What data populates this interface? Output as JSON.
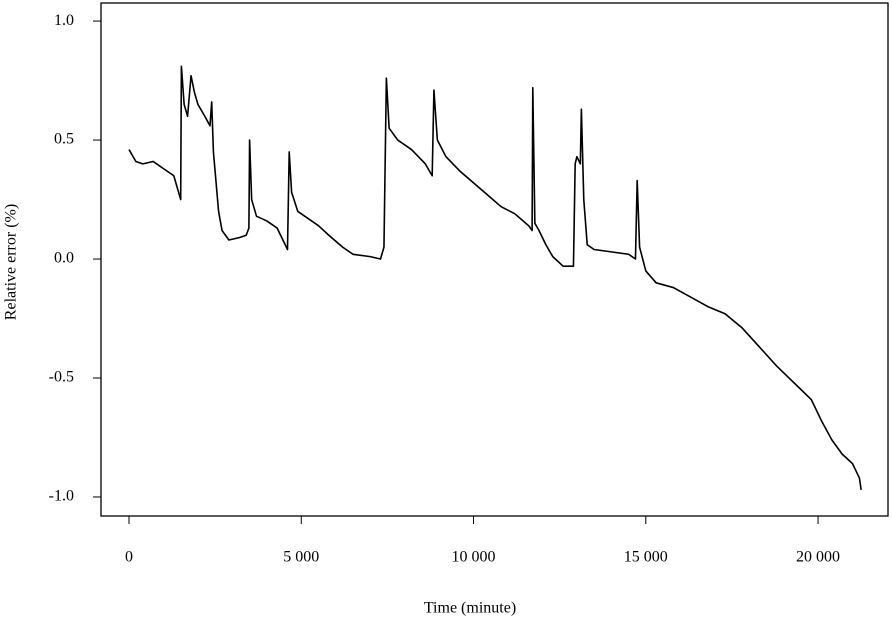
{
  "chart_data": {
    "type": "line",
    "xlabel": "Time (minute)",
    "ylabel": "Relative error (%)",
    "x": [
      0,
      200,
      400,
      700,
      1000,
      1300,
      1500,
      1520,
      1600,
      1700,
      1800,
      1900,
      2000,
      2200,
      2350,
      2400,
      2450,
      2600,
      2700,
      2900,
      3200,
      3400,
      3480,
      3500,
      3560,
      3700,
      4000,
      4300,
      4500,
      4600,
      4650,
      4720,
      4900,
      5200,
      5500,
      5800,
      6200,
      6500,
      7000,
      7300,
      7400,
      7470,
      7550,
      7800,
      8200,
      8600,
      8800,
      8850,
      8950,
      9200,
      9600,
      10000,
      10400,
      10800,
      11200,
      11600,
      11700,
      11720,
      11780,
      11900,
      12100,
      12300,
      12600,
      12900,
      12950,
      13000,
      13100,
      13130,
      13200,
      13300,
      13500,
      14000,
      14500,
      14700,
      14750,
      14820,
      15000,
      15300,
      15800,
      16300,
      16800,
      17300,
      17800,
      18300,
      18800,
      19300,
      19800,
      20100,
      20400,
      20700,
      21000,
      21200,
      21250
    ],
    "values": [
      0.46,
      0.41,
      0.4,
      0.41,
      0.38,
      0.35,
      0.25,
      0.81,
      0.65,
      0.6,
      0.77,
      0.7,
      0.65,
      0.6,
      0.56,
      0.66,
      0.45,
      0.2,
      0.12,
      0.08,
      0.09,
      0.1,
      0.13,
      0.5,
      0.25,
      0.18,
      0.16,
      0.13,
      0.07,
      0.04,
      0.45,
      0.28,
      0.2,
      0.17,
      0.14,
      0.1,
      0.05,
      0.02,
      0.01,
      0.0,
      0.05,
      0.76,
      0.55,
      0.5,
      0.46,
      0.4,
      0.35,
      0.71,
      0.5,
      0.43,
      0.37,
      0.32,
      0.27,
      0.22,
      0.19,
      0.14,
      0.12,
      0.72,
      0.15,
      0.12,
      0.06,
      0.01,
      -0.03,
      -0.03,
      0.4,
      0.43,
      0.4,
      0.63,
      0.25,
      0.06,
      0.04,
      0.03,
      0.02,
      0.0,
      0.33,
      0.05,
      -0.05,
      -0.1,
      -0.12,
      -0.16,
      -0.2,
      -0.23,
      -0.29,
      -0.37,
      -0.45,
      -0.52,
      -0.59,
      -0.68,
      -0.76,
      -0.82,
      -0.86,
      -0.92,
      -0.97
    ],
    "color": "#000000",
    "xlim": [
      -813,
      22030
    ],
    "ylim": [
      -1.08,
      1.076
    ],
    "xticks": [
      0,
      {
        "value": 5000,
        "label": "5 000"
      },
      {
        "value": 10000,
        "label": "10 000"
      },
      {
        "value": 15000,
        "label": "15 000"
      },
      {
        "value": 20000,
        "label": "20 000"
      }
    ],
    "yticks": [
      {
        "value": 1.0,
        "label": "1.0"
      },
      0.5,
      {
        "value": 0.0,
        "label": "0.0"
      },
      -0.5,
      {
        "value": -1.0,
        "label": "-1.0"
      }
    ]
  }
}
